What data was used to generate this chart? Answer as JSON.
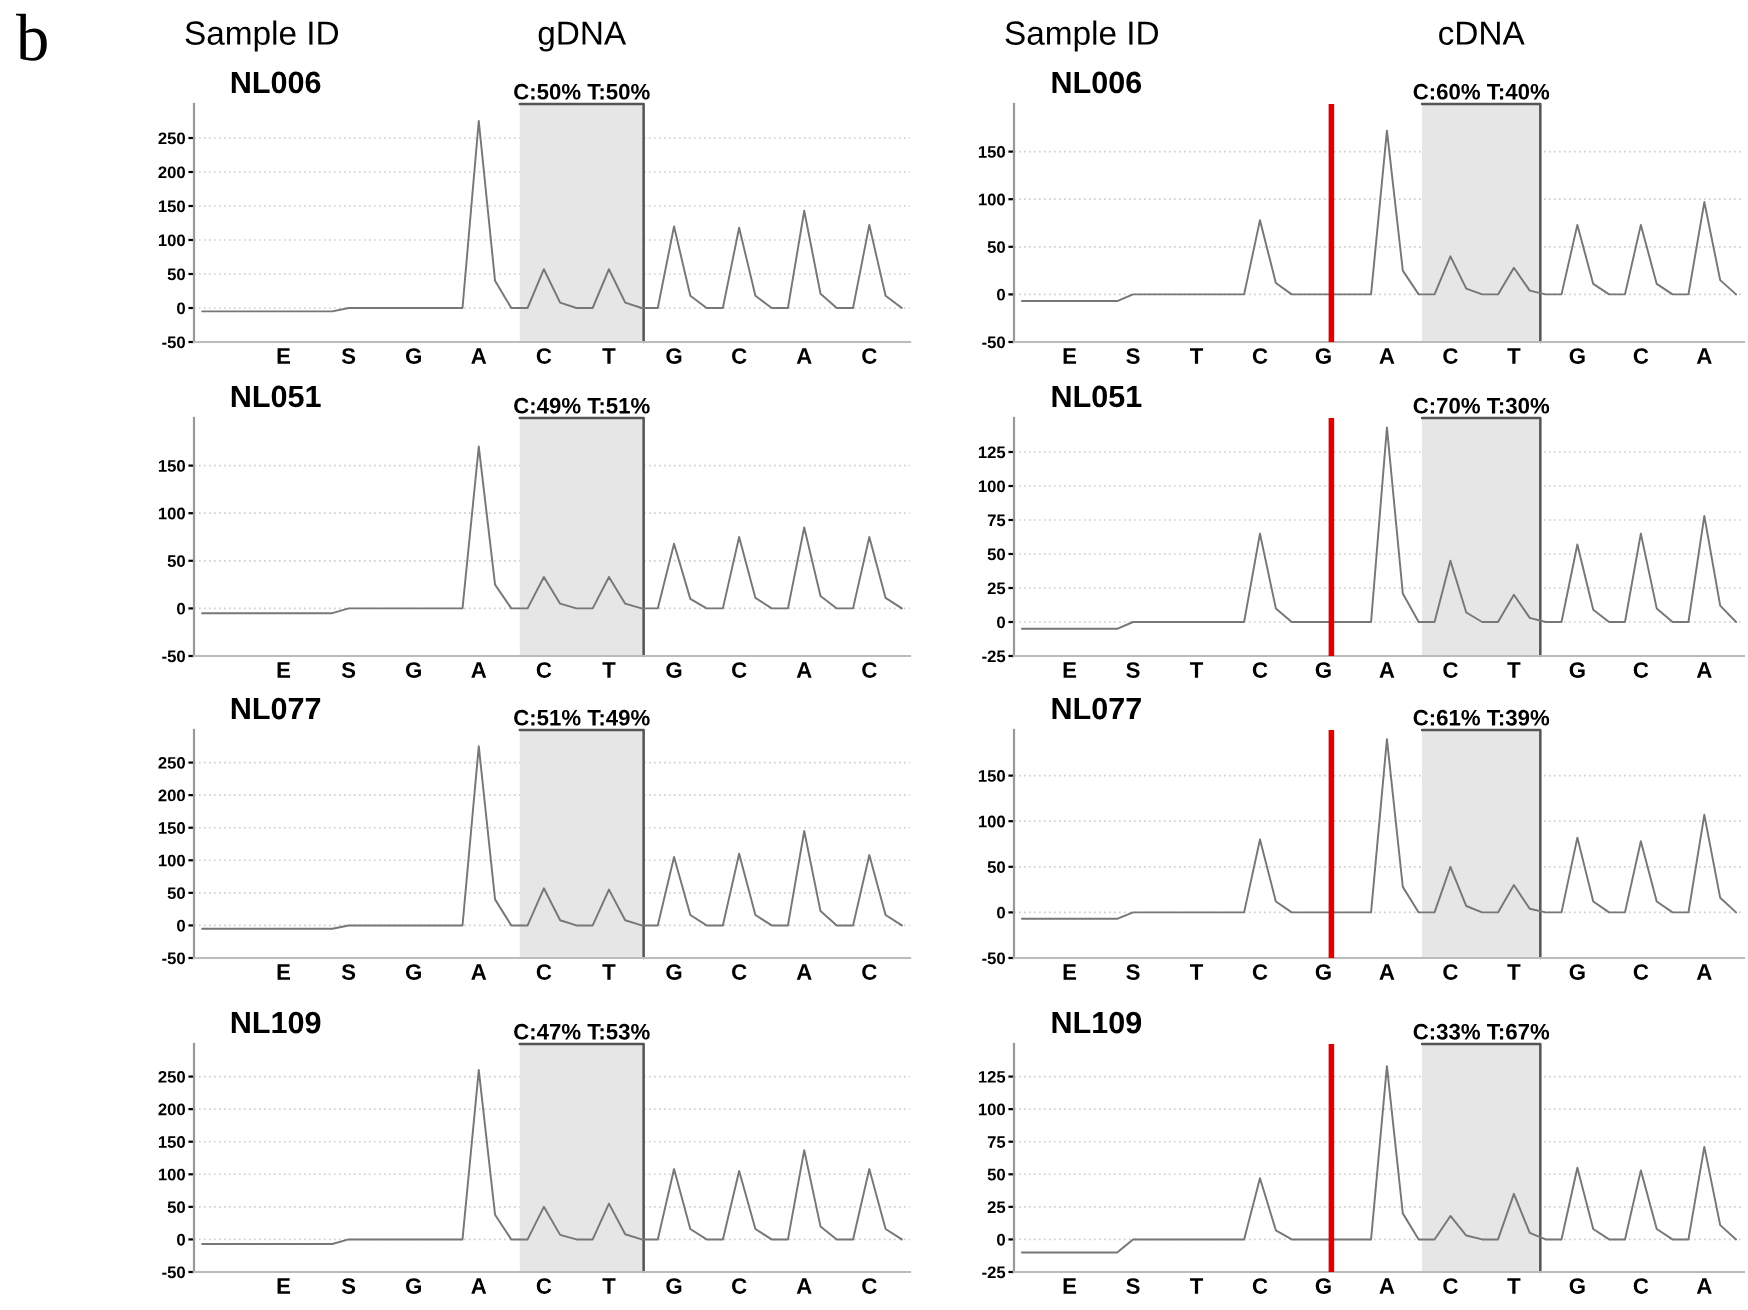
{
  "chart_data": [
    {
      "type": "line",
      "title": "NL006",
      "annotations": [
        "b",
        "Sample ID",
        "gDNA",
        "C:50% T:50%"
      ],
      "grid": "y",
      "ylim": [
        -50,
        300
      ],
      "yticks": [
        -50,
        0,
        50,
        100,
        150,
        200,
        250
      ],
      "categories": [
        null,
        null,
        null,
        null,
        null,
        "E",
        null,
        null,
        null,
        "S",
        null,
        null,
        null,
        "G",
        null,
        null,
        null,
        "A",
        null,
        null,
        null,
        "C",
        null,
        null,
        null,
        "T",
        null,
        null,
        null,
        "G",
        null,
        null,
        null,
        "C",
        null,
        null,
        null,
        "A",
        null,
        null,
        null,
        "C",
        null,
        null
      ],
      "series": [
        {
          "color": "#777777",
          "values": [
            -5,
            -5,
            -5,
            -5,
            -5,
            -5,
            -5,
            -5,
            -5,
            0,
            0,
            0,
            0,
            0,
            0,
            0,
            0,
            275,
            40,
            0,
            0,
            57,
            8,
            0,
            0,
            57,
            8,
            0,
            0,
            120,
            18,
            0,
            0,
            118,
            18,
            0,
            0,
            143,
            21,
            0,
            0,
            122,
            18,
            0
          ]
        }
      ]
    },
    {
      "type": "line",
      "title": "NL006",
      "annotations": [
        "Sample ID",
        "cDNA",
        "C:60% T:40%"
      ],
      "grid": "y",
      "ylim": [
        -50,
        200
      ],
      "yticks": [
        -50,
        0,
        50,
        100,
        150
      ],
      "categories": [
        null,
        null,
        null,
        "E",
        null,
        null,
        null,
        "S",
        null,
        null,
        null,
        "T",
        null,
        null,
        null,
        "C",
        null,
        null,
        null,
        "G",
        null,
        null,
        null,
        "A",
        null,
        null,
        null,
        "C",
        null,
        null,
        null,
        "T",
        null,
        null,
        null,
        "G",
        null,
        null,
        null,
        "C",
        null,
        null,
        null,
        "A",
        null,
        null
      ],
      "ref_lines": [
        {
          "axis": "x",
          "value": "G",
          "color": "#e00000"
        }
      ],
      "series": [
        {
          "color": "#777777",
          "values": [
            -7,
            -7,
            -7,
            -7,
            -7,
            -7,
            -7,
            0,
            0,
            0,
            0,
            0,
            0,
            0,
            0,
            78,
            12,
            0,
            0,
            0,
            0,
            0,
            0,
            172,
            25,
            0,
            0,
            40,
            6,
            0,
            0,
            28,
            4,
            0,
            0,
            73,
            11,
            0,
            0,
            73,
            11,
            0,
            0,
            97,
            15,
            0
          ]
        }
      ]
    },
    {
      "type": "line",
      "title": "NL051",
      "grid": "y",
      "ylim": [
        -50,
        200
      ],
      "yticks": [
        -50,
        0,
        50,
        100,
        150
      ],
      "categories": [
        null,
        null,
        null,
        null,
        null,
        "E",
        null,
        null,
        null,
        "S",
        null,
        null,
        null,
        "G",
        null,
        null,
        null,
        "A",
        null,
        null,
        null,
        "C",
        null,
        null,
        null,
        "T",
        null,
        null,
        null,
        "G",
        null,
        null,
        null,
        "C",
        null,
        null,
        null,
        "A",
        null,
        null,
        null,
        "C",
        null,
        null
      ],
      "annotations": [
        "C:49% T:51%"
      ],
      "series": [
        {
          "color": "#777777",
          "values": [
            -5,
            -5,
            -5,
            -5,
            -5,
            -5,
            -5,
            -5,
            -5,
            0,
            0,
            0,
            0,
            0,
            0,
            0,
            0,
            170,
            25,
            0,
            0,
            33,
            5,
            0,
            0,
            33,
            5,
            0,
            0,
            68,
            10,
            0,
            0,
            75,
            11,
            0,
            0,
            85,
            13,
            0,
            0,
            75,
            11,
            0
          ]
        }
      ]
    },
    {
      "type": "line",
      "title": "NL051",
      "grid": "y",
      "ylim": [
        -25,
        150
      ],
      "yticks": [
        -25,
        0,
        25,
        50,
        75,
        100,
        125
      ],
      "categories": [
        null,
        null,
        null,
        "E",
        null,
        null,
        null,
        "S",
        null,
        null,
        null,
        "T",
        null,
        null,
        null,
        "C",
        null,
        null,
        null,
        "G",
        null,
        null,
        null,
        "A",
        null,
        null,
        null,
        "C",
        null,
        null,
        null,
        "T",
        null,
        null,
        null,
        "G",
        null,
        null,
        null,
        "C",
        null,
        null,
        null,
        "A",
        null,
        null
      ],
      "annotations": [
        "C:70% T:30%"
      ],
      "ref_lines": [
        {
          "axis": "x",
          "value": "G",
          "color": "#e00000"
        }
      ],
      "series": [
        {
          "color": "#777777",
          "values": [
            -5,
            -5,
            -5,
            -5,
            -5,
            -5,
            -5,
            0,
            0,
            0,
            0,
            0,
            0,
            0,
            0,
            65,
            10,
            0,
            0,
            0,
            0,
            0,
            0,
            143,
            21,
            0,
            0,
            45,
            7,
            0,
            0,
            20,
            3,
            0,
            0,
            57,
            9,
            0,
            0,
            65,
            10,
            0,
            0,
            78,
            12,
            0
          ]
        }
      ]
    },
    {
      "type": "line",
      "title": "NL077",
      "grid": "y",
      "ylim": [
        -50,
        300
      ],
      "yticks": [
        -50,
        0,
        50,
        100,
        150,
        200,
        250
      ],
      "categories": [
        null,
        null,
        null,
        null,
        null,
        "E",
        null,
        null,
        null,
        "S",
        null,
        null,
        null,
        "G",
        null,
        null,
        null,
        "A",
        null,
        null,
        null,
        "C",
        null,
        null,
        null,
        "T",
        null,
        null,
        null,
        "G",
        null,
        null,
        null,
        "C",
        null,
        null,
        null,
        "A",
        null,
        null,
        null,
        "C",
        null,
        null
      ],
      "annotations": [
        "C:51% T:49%"
      ],
      "series": [
        {
          "color": "#777777",
          "values": [
            -5,
            -5,
            -5,
            -5,
            -5,
            -5,
            -5,
            -5,
            -5,
            0,
            0,
            0,
            0,
            0,
            0,
            0,
            0,
            275,
            40,
            0,
            0,
            57,
            8,
            0,
            0,
            55,
            8,
            0,
            0,
            105,
            16,
            0,
            0,
            110,
            16,
            0,
            0,
            145,
            22,
            0,
            0,
            108,
            16,
            0
          ]
        }
      ]
    },
    {
      "type": "line",
      "title": "NL077",
      "grid": "y",
      "ylim": [
        -50,
        200
      ],
      "yticks": [
        -50,
        0,
        50,
        100,
        150
      ],
      "categories": [
        null,
        null,
        null,
        "E",
        null,
        null,
        null,
        "S",
        null,
        null,
        null,
        "T",
        null,
        null,
        null,
        "C",
        null,
        null,
        null,
        "G",
        null,
        null,
        null,
        "A",
        null,
        null,
        null,
        "C",
        null,
        null,
        null,
        "T",
        null,
        null,
        null,
        "G",
        null,
        null,
        null,
        "C",
        null,
        null,
        null,
        "A",
        null,
        null
      ],
      "annotations": [
        "C:61% T:39%"
      ],
      "ref_lines": [
        {
          "axis": "x",
          "value": "G",
          "color": "#e00000"
        }
      ],
      "series": [
        {
          "color": "#777777",
          "values": [
            -7,
            -7,
            -7,
            -7,
            -7,
            -7,
            -7,
            0,
            0,
            0,
            0,
            0,
            0,
            0,
            0,
            80,
            12,
            0,
            0,
            0,
            0,
            0,
            0,
            190,
            28,
            0,
            0,
            50,
            7,
            0,
            0,
            30,
            4,
            0,
            0,
            82,
            12,
            0,
            0,
            78,
            12,
            0,
            0,
            107,
            16,
            0
          ]
        }
      ]
    },
    {
      "type": "line",
      "title": "NL109",
      "grid": "y",
      "ylim": [
        -50,
        300
      ],
      "yticks": [
        -50,
        0,
        50,
        100,
        150,
        200,
        250
      ],
      "categories": [
        null,
        null,
        null,
        null,
        null,
        "E",
        null,
        null,
        null,
        "S",
        null,
        null,
        null,
        "G",
        null,
        null,
        null,
        "A",
        null,
        null,
        null,
        "C",
        null,
        null,
        null,
        "T",
        null,
        null,
        null,
        "G",
        null,
        null,
        null,
        "C",
        null,
        null,
        null,
        "A",
        null,
        null,
        null,
        "C",
        null,
        null
      ],
      "annotations": [
        "C:47% T:53%"
      ],
      "series": [
        {
          "color": "#777777",
          "values": [
            -7,
            -7,
            -7,
            -7,
            -7,
            -7,
            -7,
            -7,
            -7,
            0,
            0,
            0,
            0,
            0,
            0,
            0,
            0,
            260,
            38,
            0,
            0,
            50,
            7,
            0,
            0,
            55,
            8,
            0,
            0,
            108,
            16,
            0,
            0,
            105,
            16,
            0,
            0,
            137,
            20,
            0,
            0,
            108,
            16,
            0
          ]
        }
      ]
    },
    {
      "type": "line",
      "title": "NL109",
      "grid": "y",
      "ylim": [
        -25,
        150
      ],
      "yticks": [
        -25,
        0,
        25,
        50,
        75,
        100,
        125
      ],
      "categories": [
        null,
        null,
        null,
        "E",
        null,
        null,
        null,
        "S",
        null,
        null,
        null,
        "T",
        null,
        null,
        null,
        "C",
        null,
        null,
        null,
        "G",
        null,
        null,
        null,
        "A",
        null,
        null,
        null,
        "C",
        null,
        null,
        null,
        "T",
        null,
        null,
        null,
        "G",
        null,
        null,
        null,
        "C",
        null,
        null,
        null,
        "A",
        null,
        null
      ],
      "annotations": [
        "C:33% T:67%"
      ],
      "ref_lines": [
        {
          "axis": "x",
          "value": "G",
          "color": "#e00000"
        }
      ],
      "series": [
        {
          "color": "#777777",
          "values": [
            -10,
            -10,
            -10,
            -10,
            -10,
            -10,
            -10,
            0,
            0,
            0,
            0,
            0,
            0,
            0,
            0,
            47,
            7,
            0,
            0,
            0,
            0,
            0,
            0,
            133,
            20,
            0,
            0,
            18,
            3,
            0,
            0,
            35,
            5,
            0,
            0,
            55,
            8,
            0,
            0,
            53,
            8,
            0,
            0,
            71,
            11,
            0
          ]
        }
      ]
    }
  ]
}
